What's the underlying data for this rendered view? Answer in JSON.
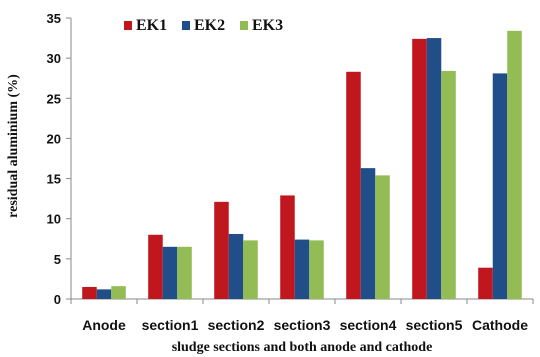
{
  "chart_data": {
    "type": "bar",
    "categories": [
      "Anode",
      "section1",
      "section2",
      "section3",
      "section4",
      "section5",
      "Cathode"
    ],
    "series": [
      {
        "name": "EK1",
        "color": "#c0161d",
        "values": [
          1.5,
          8.0,
          12.1,
          12.9,
          28.3,
          32.4,
          3.9
        ]
      },
      {
        "name": "EK2",
        "color": "#1f4e89",
        "values": [
          1.2,
          6.5,
          8.1,
          7.4,
          16.3,
          32.5,
          28.1
        ]
      },
      {
        "name": "EK3",
        "color": "#93bc54",
        "values": [
          1.6,
          6.5,
          7.3,
          7.3,
          15.4,
          28.4,
          33.4
        ]
      }
    ],
    "xlabel": "sludge sections and both anode and cathode",
    "ylabel": "residual aluminium (%)",
    "ylim": [
      0,
      35
    ],
    "yticks": [
      0,
      5,
      10,
      15,
      20,
      25,
      30,
      35
    ],
    "grid": false,
    "legend": "top-left"
  }
}
